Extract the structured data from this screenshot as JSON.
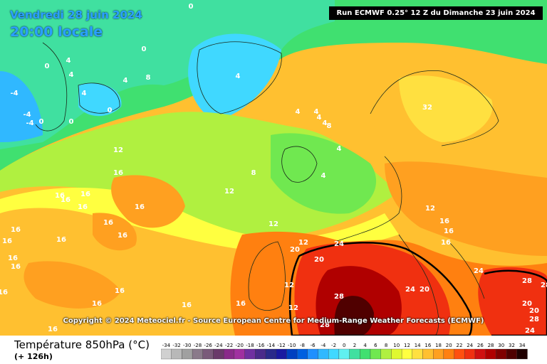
{
  "header": {
    "date": "Vendredi 28 juin 2024",
    "time": "20:00 locale",
    "run": "Run ECMWF 0.25° 12 Z du Dimanche 23 juin 2024"
  },
  "copyright": "Copyright © 2024 Meteociel.fr - Source European Centre for Medium-Range Weather Forecasts (ECMWF)",
  "legend": {
    "title": "Température 850hPa (°C)",
    "subtitle": "(+ 126h)",
    "scale": [
      {
        "label": "-34",
        "color": "#d0d0d0"
      },
      {
        "label": "-32",
        "color": "#b8b8b8"
      },
      {
        "label": "-30",
        "color": "#a0a0a0"
      },
      {
        "label": "-28",
        "color": "#8a7a8a"
      },
      {
        "label": "-26",
        "color": "#7a5a7a"
      },
      {
        "label": "-24",
        "color": "#6a3a6a"
      },
      {
        "label": "-22",
        "color": "#8a2a8a"
      },
      {
        "label": "-20",
        "color": "#a030a0"
      },
      {
        "label": "-18",
        "color": "#7030a0"
      },
      {
        "label": "-16",
        "color": "#4a2a8a"
      },
      {
        "label": "-14",
        "color": "#2a2a8a"
      },
      {
        "label": "-12",
        "color": "#1a1aa0"
      },
      {
        "label": "-10",
        "color": "#0040c0"
      },
      {
        "label": "-8",
        "color": "#0060e0"
      },
      {
        "label": "-6",
        "color": "#2090ff"
      },
      {
        "label": "-4",
        "color": "#30b8ff"
      },
      {
        "label": "-2",
        "color": "#40d8ff"
      },
      {
        "label": "0",
        "color": "#60f0f0"
      },
      {
        "label": "2",
        "color": "#40e0a0"
      },
      {
        "label": "4",
        "color": "#40e070"
      },
      {
        "label": "6",
        "color": "#70e850"
      },
      {
        "label": "8",
        "color": "#b0f040"
      },
      {
        "label": "10",
        "color": "#e0f830"
      },
      {
        "label": "12",
        "color": "#ffff40"
      },
      {
        "label": "14",
        "color": "#ffe040"
      },
      {
        "label": "16",
        "color": "#ffc030"
      },
      {
        "label": "18",
        "color": "#ffa020"
      },
      {
        "label": "20",
        "color": "#ff8010"
      },
      {
        "label": "22",
        "color": "#ff5010"
      },
      {
        "label": "24",
        "color": "#f03010"
      },
      {
        "label": "26",
        "color": "#d01010"
      },
      {
        "label": "28",
        "color": "#b00000"
      },
      {
        "label": "30",
        "color": "#800000"
      },
      {
        "label": "32",
        "color": "#500000"
      },
      {
        "label": "34",
        "color": "#200000"
      }
    ]
  },
  "map_values": [
    "0",
    "4",
    "4",
    "8",
    "0",
    "0",
    "-4",
    "-4",
    "-4",
    "0",
    "0",
    "4",
    "0",
    "4",
    "4",
    "4",
    "4",
    "4",
    "4",
    "8",
    "4",
    "4",
    "8",
    "12",
    "12",
    "16",
    "16",
    "16",
    "16",
    "16",
    "16",
    "16",
    "16",
    "16",
    "16",
    "16",
    "16",
    "16",
    "16",
    "16",
    "16",
    "16",
    "16",
    "16",
    "12",
    "12",
    "12",
    "12",
    "20",
    "20",
    "24",
    "28",
    "24",
    "20",
    "24",
    "28",
    "20",
    "20",
    "24",
    "28",
    "28",
    "28",
    "32",
    "12",
    "16",
    "16",
    "16"
  ]
}
